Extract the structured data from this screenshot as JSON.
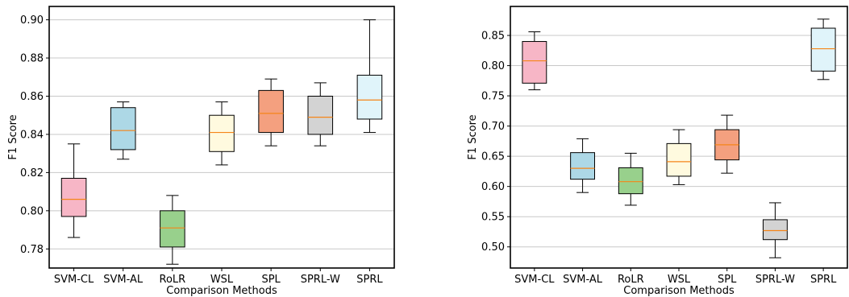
{
  "chart_data": [
    {
      "type": "box",
      "xlabel": "Comparison Methods",
      "ylabel": "F1 Score",
      "ylim": [
        0.77,
        0.907
      ],
      "yticks": [
        "0.78",
        "0.80",
        "0.82",
        "0.84",
        "0.86",
        "0.88",
        "0.90"
      ],
      "grid": "horizontal",
      "categories": [
        "SVM-CL",
        "SVM-AL",
        "RoLR",
        "WSL",
        "SPL",
        "SPRL-W",
        "SPRL"
      ],
      "boxes": [
        {
          "whislo": 0.786,
          "q1": 0.797,
          "med": 0.806,
          "q3": 0.817,
          "whishi": 0.835,
          "color": "#f7b6c6"
        },
        {
          "whislo": 0.827,
          "q1": 0.832,
          "med": 0.842,
          "q3": 0.854,
          "whishi": 0.857,
          "color": "#add8e6"
        },
        {
          "whislo": 0.772,
          "q1": 0.781,
          "med": 0.791,
          "q3": 0.8,
          "whishi": 0.808,
          "color": "#98d08c"
        },
        {
          "whislo": 0.824,
          "q1": 0.831,
          "med": 0.841,
          "q3": 0.85,
          "whishi": 0.857,
          "color": "#fffadf"
        },
        {
          "whislo": 0.834,
          "q1": 0.841,
          "med": 0.851,
          "q3": 0.863,
          "whishi": 0.869,
          "color": "#f4a07f"
        },
        {
          "whislo": 0.834,
          "q1": 0.84,
          "med": 0.849,
          "q3": 0.86,
          "whishi": 0.867,
          "color": "#d3d3d3"
        },
        {
          "whislo": 0.841,
          "q1": 0.848,
          "med": 0.858,
          "q3": 0.871,
          "whishi": 0.9,
          "color": "#e0f4fa"
        }
      ]
    },
    {
      "type": "box",
      "xlabel": "Comparison Methods",
      "ylabel": "F1 Score",
      "ylim": [
        0.465,
        0.898
      ],
      "yticks": [
        "0.50",
        "0.55",
        "0.60",
        "0.65",
        "0.70",
        "0.75",
        "0.80",
        "0.85"
      ],
      "grid": "horizontal",
      "categories": [
        "SVM-CL",
        "SVM-AL",
        "RoLR",
        "WSL",
        "SPL",
        "SPRL-W",
        "SPRL"
      ],
      "boxes": [
        {
          "whislo": 0.76,
          "q1": 0.771,
          "med": 0.808,
          "q3": 0.84,
          "whishi": 0.856,
          "color": "#f7b6c6"
        },
        {
          "whislo": 0.59,
          "q1": 0.612,
          "med": 0.63,
          "q3": 0.656,
          "whishi": 0.679,
          "color": "#add8e6"
        },
        {
          "whislo": 0.569,
          "q1": 0.588,
          "med": 0.608,
          "q3": 0.631,
          "whishi": 0.655,
          "color": "#98d08c"
        },
        {
          "whislo": 0.603,
          "q1": 0.617,
          "med": 0.641,
          "q3": 0.671,
          "whishi": 0.694,
          "color": "#fffadf"
        },
        {
          "whislo": 0.622,
          "q1": 0.644,
          "med": 0.669,
          "q3": 0.694,
          "whishi": 0.718,
          "color": "#f4a07f"
        },
        {
          "whislo": 0.482,
          "q1": 0.512,
          "med": 0.527,
          "q3": 0.545,
          "whishi": 0.573,
          "color": "#d3d3d3"
        },
        {
          "whislo": 0.777,
          "q1": 0.791,
          "med": 0.828,
          "q3": 0.862,
          "whishi": 0.877,
          "color": "#e0f4fa"
        }
      ]
    }
  ],
  "colors": {
    "median": "#f58518",
    "grid": "#c8c8c8",
    "frame": "#000000"
  }
}
